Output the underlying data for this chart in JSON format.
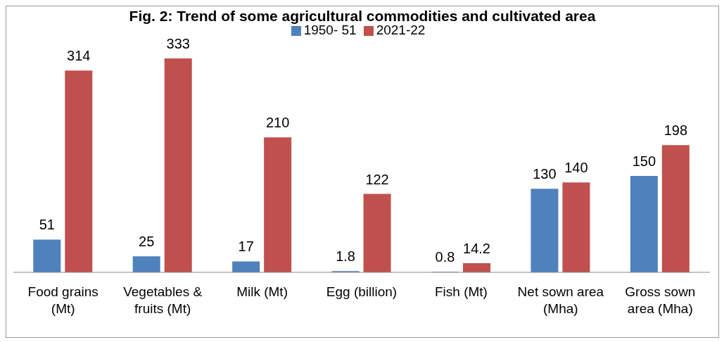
{
  "chart_data": {
    "type": "bar",
    "title": "Fig. 2: Trend of some agricultural commodities and cultivated area",
    "categories": [
      "Food grains (Mt)",
      "Vegetables & fruits (Mt)",
      "Milk (Mt)",
      "Egg (billion)",
      "Fish (Mt)",
      "Net sown area (Mha)",
      "Gross sown area (Mha)"
    ],
    "series": [
      {
        "name": "1950- 51",
        "color": "#4f81bd",
        "values": [
          51,
          25,
          17,
          1.8,
          0.8,
          130,
          150
        ]
      },
      {
        "name": "2021-22",
        "color": "#c0504d",
        "values": [
          314,
          333,
          210,
          122,
          14.2,
          140,
          198
        ]
      }
    ],
    "data_labels": true,
    "legend": "top"
  }
}
